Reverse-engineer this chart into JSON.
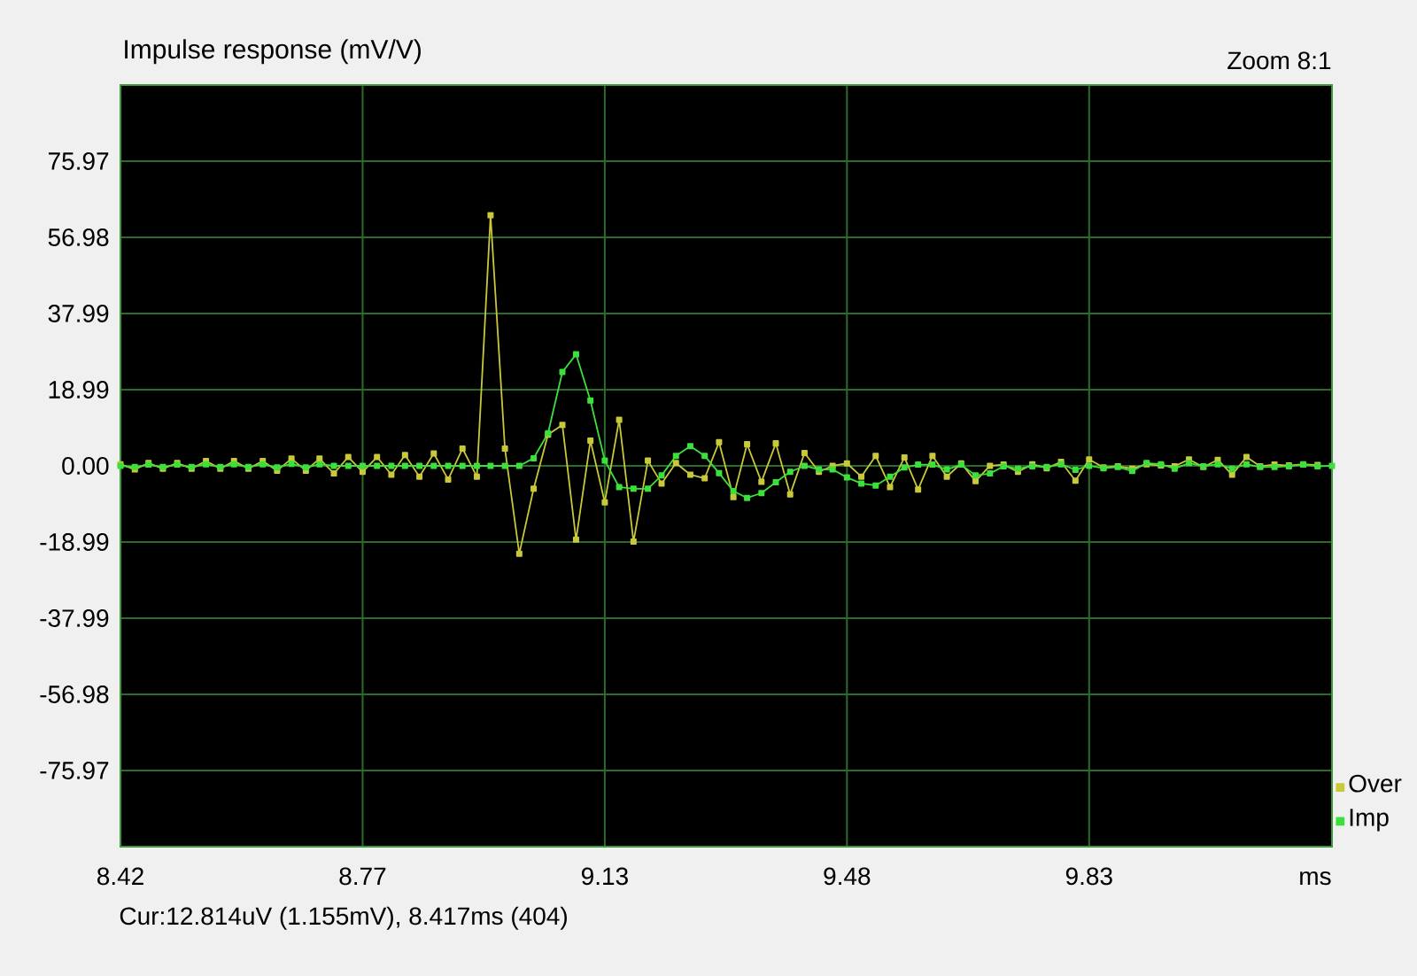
{
  "chart_data": {
    "type": "line",
    "title": "Impulse response (mV/V)",
    "xlabel": "ms",
    "annotations": [
      "Zoom 8:1",
      "Cur:12.814uV (1.155mV), 8.417ms (404)"
    ],
    "x": [
      8.417,
      8.438,
      8.458,
      8.479,
      8.5,
      8.521,
      8.542,
      8.563,
      8.583,
      8.604,
      8.625,
      8.646,
      8.667,
      8.688,
      8.708,
      8.729,
      8.75,
      8.771,
      8.792,
      8.813,
      8.833,
      8.854,
      8.875,
      8.896,
      8.917,
      8.938,
      8.958,
      8.979,
      9.0,
      9.021,
      9.042,
      9.063,
      9.083,
      9.104,
      9.125,
      9.146,
      9.167,
      9.188,
      9.208,
      9.229,
      9.25,
      9.271,
      9.292,
      9.313,
      9.333,
      9.354,
      9.375,
      9.396,
      9.417,
      9.438,
      9.458,
      9.479,
      9.5,
      9.521,
      9.542,
      9.563,
      9.583,
      9.604,
      9.625,
      9.646,
      9.667,
      9.688,
      9.708,
      9.729,
      9.75,
      9.771,
      9.792,
      9.813,
      9.833,
      9.854,
      9.875,
      9.896,
      9.917,
      9.938,
      9.958,
      9.979,
      10.0,
      10.021,
      10.042,
      10.063,
      10.083,
      10.104,
      10.125,
      10.146,
      10.167,
      10.188
    ],
    "series": [
      {
        "name": "Over",
        "color": "#c8c83a",
        "values": [
          0.4,
          -0.9,
          0.7,
          -0.7,
          0.7,
          -0.7,
          1.2,
          -0.7,
          1.2,
          -0.7,
          1.2,
          -1.2,
          1.8,
          -1.2,
          1.8,
          -1.9,
          2.2,
          -1.5,
          2.2,
          -2.2,
          2.7,
          -2.7,
          3.1,
          -3.4,
          4.3,
          -2.7,
          62.5,
          4.3,
          -21.9,
          -5.7,
          7.8,
          10.2,
          -18.4,
          6.3,
          -9.1,
          11.5,
          -18.9,
          1.3,
          -4.4,
          0.7,
          -2.2,
          -3.1,
          5.9,
          -7.8,
          5.4,
          -4.0,
          5.6,
          -7.1,
          3.2,
          -1.5,
          0,
          0.6,
          -2.7,
          2.5,
          -5.3,
          2.1,
          -5.9,
          2.5,
          -2.7,
          0.6,
          -3.8,
          0,
          0.3,
          -1.5,
          0.4,
          -0.6,
          1.0,
          -3.7,
          1.6,
          -0.4,
          -0.1,
          -0.7,
          0.4,
          0.1,
          -0.1,
          1.6,
          -0.3,
          1.5,
          -2.2,
          2.2,
          -0.1,
          0.3,
          0.1,
          0.4,
          0.2,
          null
        ]
      },
      {
        "name": "Imp",
        "color": "#3ce03c",
        "values": [
          0,
          -0.3,
          0.3,
          -0.3,
          0.3,
          -0.3,
          0.4,
          -0.3,
          0.4,
          -0.3,
          0.4,
          -0.4,
          0.5,
          -0.4,
          0.4,
          0,
          0,
          0,
          0,
          0,
          0,
          0,
          0,
          0,
          0,
          0,
          0,
          0,
          0,
          1.9,
          8.1,
          23.4,
          27.8,
          16.3,
          1.3,
          -5.3,
          -5.7,
          -5.7,
          -2.4,
          2.5,
          4.9,
          2.5,
          -1.8,
          -6.3,
          -8.0,
          -6.8,
          -4.1,
          -1.5,
          0,
          -0.9,
          -0.9,
          -2.9,
          -4.4,
          -4.9,
          -2.7,
          -0.4,
          0.3,
          0.3,
          -0.9,
          0.3,
          -2.4,
          -1.9,
          -0.1,
          -0.7,
          -0.1,
          -0.3,
          0.4,
          -1.0,
          0,
          -0.6,
          -0.3,
          -1.3,
          0.7,
          0.4,
          -0.7,
          0.7,
          -0.1,
          0.4,
          -0.7,
          0.4,
          -0.3,
          -0.3,
          -0.1,
          0.3,
          -0.1,
          0
        ]
      }
    ],
    "xlim": [
      8.417,
      10.188
    ],
    "xticks": [
      {
        "value": 8.417,
        "label": "8.42"
      },
      {
        "value": 8.771,
        "label": "8.77"
      },
      {
        "value": 9.125,
        "label": "9.13"
      },
      {
        "value": 9.479,
        "label": "9.48"
      },
      {
        "value": 9.833,
        "label": "9.83"
      }
    ],
    "ylim": [
      -94.96,
      94.96
    ],
    "yticks": [
      -75.97,
      -56.98,
      -37.99,
      -18.99,
      {
        "value": 0,
        "label": "0.00"
      },
      18.99,
      37.99,
      56.98,
      75.97
    ],
    "grid": true,
    "legend": "bottom right",
    "marker": "square",
    "line_style": "solid"
  }
}
